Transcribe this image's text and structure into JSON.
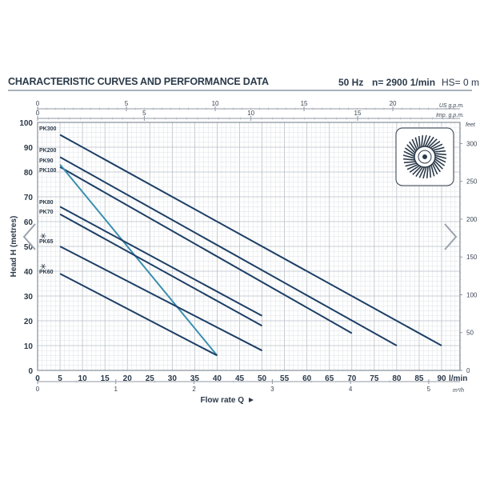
{
  "header": {
    "title": "CHARACTERISTIC CURVES AND PERFORMANCE DATA",
    "frequency": "50 Hz",
    "speed": "n= 2900  1/min",
    "hs": "HS= 0 m"
  },
  "chart_data": {
    "type": "line",
    "title": "CHARACTERISTIC CURVES AND PERFORMANCE DATA",
    "xlabel": "Flow rate Q",
    "ylabel": "Head H (metres)",
    "x_unit": "l/min",
    "xlim": [
      0,
      90
    ],
    "ylim": [
      0,
      100
    ],
    "x_ticks": [
      0,
      5,
      10,
      15,
      20,
      25,
      30,
      35,
      40,
      45,
      50,
      55,
      60,
      65,
      70,
      75,
      80,
      85,
      90
    ],
    "y_ticks": [
      0,
      10,
      20,
      30,
      40,
      50,
      60,
      70,
      80,
      90,
      100
    ],
    "grid": true,
    "top_axes": [
      {
        "unit": "US g.p.m.",
        "ticks": [
          0,
          5,
          10,
          15,
          20
        ],
        "max": 23.78
      },
      {
        "unit": "Imp. g.p.m.",
        "ticks": [
          0,
          5,
          10,
          15
        ],
        "max": 19.8
      }
    ],
    "right_axis": {
      "unit": "feet",
      "ticks": [
        0,
        50,
        100,
        150,
        200,
        250,
        300
      ],
      "max": 328
    },
    "bottom_axis": {
      "unit": "m³/h",
      "ticks": [
        0,
        1,
        2,
        3,
        4,
        5
      ],
      "max": 5.4
    },
    "series": [
      {
        "name": "PK300",
        "x": [
          5,
          90
        ],
        "y": [
          95,
          10
        ],
        "color": "#1d3f66"
      },
      {
        "name": "PK200",
        "x": [
          5,
          80
        ],
        "y": [
          86,
          10
        ],
        "color": "#1d3f66"
      },
      {
        "name": "PK90",
        "x": [
          5,
          70
        ],
        "y": [
          82,
          15
        ],
        "color": "#1d3f66"
      },
      {
        "name": "PK100",
        "x": [
          5,
          40
        ],
        "y": [
          83,
          6
        ],
        "color": "#3a8fb0"
      },
      {
        "name": "PK80",
        "x": [
          5,
          50
        ],
        "y": [
          66,
          22
        ],
        "color": "#1d3f66"
      },
      {
        "name": "PK70",
        "x": [
          5,
          50
        ],
        "y": [
          63,
          18
        ],
        "color": "#1d3f66"
      },
      {
        "name": "PK65",
        "x": [
          5,
          50
        ],
        "y": [
          50,
          8
        ],
        "color": "#1d3f66"
      },
      {
        "name": "PK60",
        "x": [
          5,
          40
        ],
        "y": [
          39,
          6
        ],
        "color": "#1d3f66"
      }
    ]
  },
  "icons": {
    "impeller": "impeller-icon",
    "prev": "chevron-left-icon",
    "next": "chevron-right-icon",
    "pk65_marker": "flower-icon",
    "pk60_marker": "flower-icon"
  }
}
